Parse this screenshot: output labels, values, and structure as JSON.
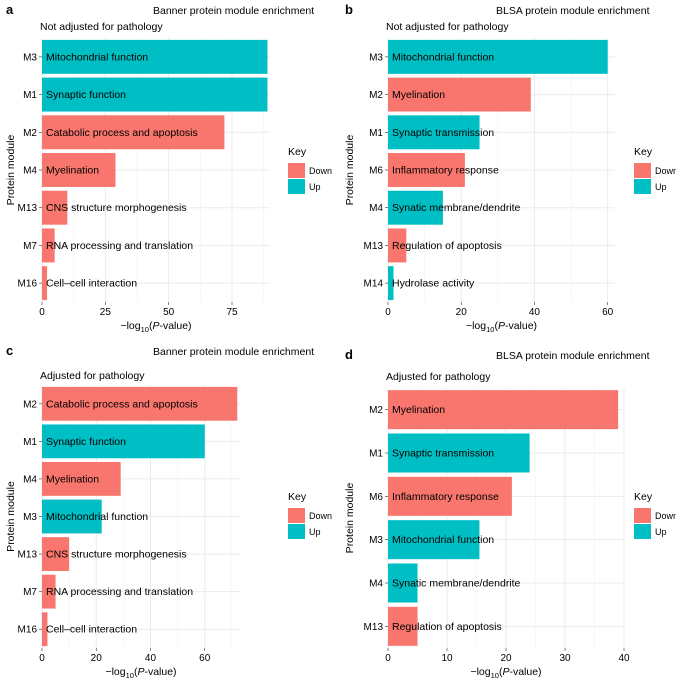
{
  "colors": {
    "down": "#F8766D",
    "up": "#00BFC4",
    "panel_bg": "#FFFFFF",
    "grid_major": "#EBEBEB",
    "grid_minor": "#F5F5F5"
  },
  "chart_data": [
    {
      "panel_letter": "a",
      "type": "bar",
      "orientation": "horizontal",
      "title": "Banner protein module enrichment",
      "subtitle": "Not adjusted for pathology",
      "xlabel": "-log10(P-value)",
      "ylabel": "Protein module",
      "xlim": [
        0,
        90
      ],
      "xticks": [
        0,
        25,
        50,
        75
      ],
      "legend": {
        "title": "Key",
        "entries": [
          "Down",
          "Up"
        ],
        "position": "right"
      },
      "bars": [
        {
          "module": "M3",
          "label": "Mitochondrial function",
          "value": 89,
          "direction": "Up"
        },
        {
          "module": "M1",
          "label": "Synaptic function",
          "value": 89,
          "direction": "Up"
        },
        {
          "module": "M2",
          "label": "Catabolic process and apoptosis",
          "value": 72,
          "direction": "Down"
        },
        {
          "module": "M4",
          "label": "Myelination",
          "value": 29,
          "direction": "Down"
        },
        {
          "module": "M13",
          "label": "CNS structure morphogenesis",
          "value": 10,
          "direction": "Down"
        },
        {
          "module": "M7",
          "label": "RNA processing and translation",
          "value": 5,
          "direction": "Down"
        },
        {
          "module": "M16",
          "label": "Cell–cell interaction",
          "value": 2,
          "direction": "Down"
        }
      ]
    },
    {
      "panel_letter": "b",
      "type": "bar",
      "orientation": "horizontal",
      "title": "BLSA protein module enrichment",
      "subtitle": "Not adjusted for pathology",
      "xlabel": "-log10(P-value)",
      "ylabel": "Protein module",
      "xlim": [
        0,
        62
      ],
      "xticks": [
        0,
        20,
        40,
        60
      ],
      "legend": {
        "title": "Key",
        "entries": [
          "Down",
          "Up"
        ],
        "position": "right"
      },
      "bars": [
        {
          "module": "M3",
          "label": "Mitochondrial function",
          "value": 60,
          "direction": "Up"
        },
        {
          "module": "M2",
          "label": "Myelination",
          "value": 39,
          "direction": "Down"
        },
        {
          "module": "M1",
          "label": "Synaptic transmission",
          "value": 25,
          "direction": "Up"
        },
        {
          "module": "M6",
          "label": "Inflammatory response",
          "value": 21,
          "direction": "Down"
        },
        {
          "module": "M4",
          "label": "Synatic membrane/dendrite",
          "value": 15,
          "direction": "Up"
        },
        {
          "module": "M13",
          "label": "Regulation of apoptosis",
          "value": 5,
          "direction": "Down"
        },
        {
          "module": "M14",
          "label": "Hydrolase activity",
          "value": 1.5,
          "direction": "Up"
        }
      ]
    },
    {
      "panel_letter": "c",
      "type": "bar",
      "orientation": "horizontal",
      "title": "Banner protein module enrichment",
      "subtitle": "Adjusted for pathology",
      "xlabel": "-log10(P-value)",
      "ylabel": "Protein module",
      "xlim": [
        0,
        73
      ],
      "xticks": [
        0,
        20,
        40,
        60
      ],
      "legend": {
        "title": "Key",
        "entries": [
          "Down",
          "Up"
        ],
        "position": "right"
      },
      "bars": [
        {
          "module": "M2",
          "label": "Catabolic process and apoptosis",
          "value": 72,
          "direction": "Down"
        },
        {
          "module": "M1",
          "label": "Synaptic function",
          "value": 60,
          "direction": "Up"
        },
        {
          "module": "M4",
          "label": "Myelination",
          "value": 29,
          "direction": "Down"
        },
        {
          "module": "M3",
          "label": "Mitochondrial function",
          "value": 22,
          "direction": "Up"
        },
        {
          "module": "M13",
          "label": "CNS structure morphogenesis",
          "value": 10,
          "direction": "Down"
        },
        {
          "module": "M7",
          "label": "RNA processing and translation",
          "value": 5,
          "direction": "Down"
        },
        {
          "module": "M16",
          "label": "Cell–cell interaction",
          "value": 2,
          "direction": "Down"
        }
      ]
    },
    {
      "panel_letter": "d",
      "type": "bar",
      "orientation": "horizontal",
      "title": "BLSA protein module enrichment",
      "subtitle": "Adjusted for pathology",
      "xlabel": "-log10(P-value)",
      "ylabel": "Protein module",
      "xlim": [
        0,
        40
      ],
      "xticks": [
        0,
        10,
        20,
        30,
        40
      ],
      "legend": {
        "title": "Key",
        "entries": [
          "Down",
          "Up"
        ],
        "position": "right"
      },
      "bars": [
        {
          "module": "M2",
          "label": "Myelination",
          "value": 39,
          "direction": "Down"
        },
        {
          "module": "M1",
          "label": "Synaptic transmission",
          "value": 24,
          "direction": "Up"
        },
        {
          "module": "M6",
          "label": "Inflammatory response",
          "value": 21,
          "direction": "Down"
        },
        {
          "module": "M3",
          "label": "Mitochondrial function",
          "value": 15.5,
          "direction": "Up"
        },
        {
          "module": "M4",
          "label": "Synatic membrane/dendrite",
          "value": 5,
          "direction": "Up"
        },
        {
          "module": "M13",
          "label": "Regulation of apoptosis",
          "value": 5,
          "direction": "Down"
        }
      ]
    }
  ]
}
